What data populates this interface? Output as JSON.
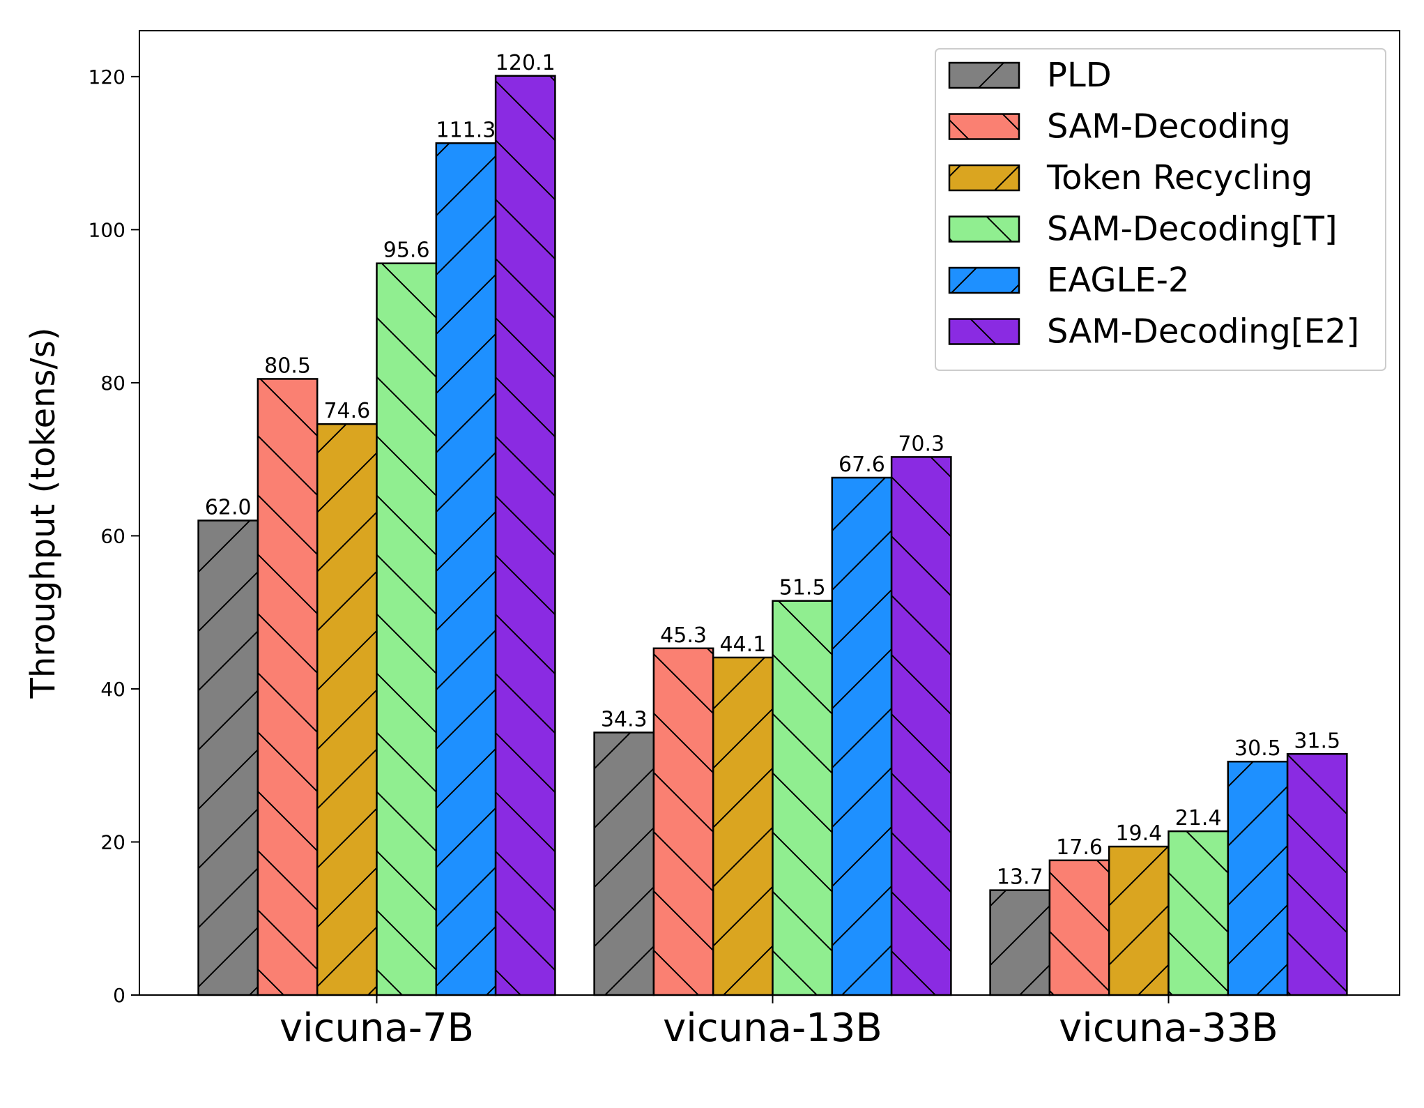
{
  "chart_data": {
    "type": "bar",
    "title": "",
    "xlabel": "",
    "ylabel": "Throughput (tokens/s)",
    "ylim": [
      0,
      126
    ],
    "yticks": [
      0,
      20,
      40,
      60,
      80,
      100,
      120
    ],
    "categories": [
      "vicuna-7B",
      "vicuna-13B",
      "vicuna-33B"
    ],
    "legend_position": "top-right",
    "grid": false,
    "series": [
      {
        "name": "PLD",
        "color": "#808080",
        "hatch": "/",
        "values": [
          62.0,
          34.3,
          13.7
        ],
        "labels": [
          "62.0",
          "34.3",
          "13.7"
        ]
      },
      {
        "name": "SAM-Decoding",
        "color": "#fa8072",
        "hatch": "\\",
        "values": [
          80.5,
          45.3,
          17.6
        ],
        "labels": [
          "80.5",
          "45.3",
          "17.6"
        ]
      },
      {
        "name": "Token Recycling",
        "color": "#daa520",
        "hatch": "/",
        "values": [
          74.6,
          44.1,
          19.4
        ],
        "labels": [
          "74.6",
          "44.1",
          "19.4"
        ]
      },
      {
        "name": "SAM-Decoding[T]",
        "color": "#90ee90",
        "hatch": "\\",
        "values": [
          95.6,
          51.5,
          21.4
        ],
        "labels": [
          "95.6",
          "51.5",
          "21.4"
        ]
      },
      {
        "name": "EAGLE-2",
        "color": "#1e90ff",
        "hatch": "/",
        "values": [
          111.3,
          67.6,
          30.5
        ],
        "labels": [
          "111.3",
          "67.6",
          "30.5"
        ]
      },
      {
        "name": "SAM-Decoding[E2]",
        "color": "#8a2be2",
        "hatch": "\\",
        "values": [
          120.1,
          70.3,
          31.5
        ],
        "labels": [
          "120.1",
          "70.3",
          "31.5"
        ]
      }
    ]
  }
}
